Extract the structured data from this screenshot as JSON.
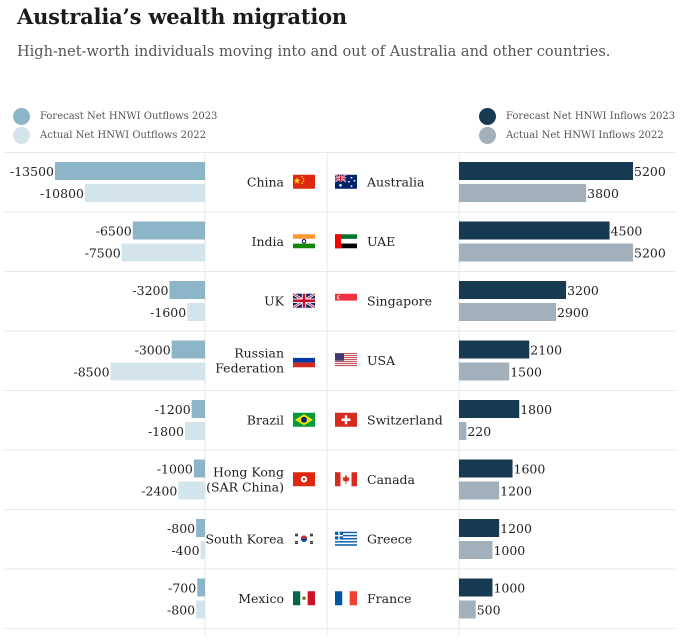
{
  "title": "Australia’s wealth migration",
  "subtitle": "High-net-worth individuals moving into and out of Australia and other countries.",
  "legend": {
    "outflow_forecast": "Forecast Net HNWI Outflows 2023",
    "outflow_actual": "Actual Net HNWI Outflows 2022",
    "inflow_forecast": "Forecast Net HNWI Inflows 2023",
    "inflow_actual": "Actual Net HNWI Inflows 2022"
  },
  "colors": {
    "outflow_forecast": "#8db5c8",
    "outflow_actual": "#d4e4ec",
    "inflow_forecast": "#163a52",
    "inflow_actual": "#a1b0ba"
  },
  "chart_data": [
    {
      "type": "bar",
      "side": "outflows",
      "categories": [
        "China",
        "India",
        "UK",
        "Russian Federation",
        "Brazil",
        "Hong Kong (SAR China)",
        "South Korea",
        "Mexico"
      ],
      "series": [
        {
          "name": "Forecast Net HNWI Outflows 2023",
          "values": [
            -13500,
            -6500,
            -3200,
            -3000,
            -1200,
            -1000,
            -800,
            -700
          ]
        },
        {
          "name": "Actual Net HNWI Outflows 2022",
          "values": [
            -10800,
            -7500,
            -1600,
            -8500,
            -1800,
            -2400,
            -400,
            -800
          ]
        }
      ]
    },
    {
      "type": "bar",
      "side": "inflows",
      "categories": [
        "Australia",
        "UAE",
        "Singapore",
        "USA",
        "Switzerland",
        "Canada",
        "Greece",
        "France"
      ],
      "series": [
        {
          "name": "Forecast Net HNWI Inflows 2023",
          "values": [
            5200,
            4500,
            3200,
            2100,
            1800,
            1600,
            1200,
            1000
          ]
        },
        {
          "name": "Actual Net HNWI Inflows 2022",
          "values": [
            3800,
            5200,
            2900,
            1500,
            220,
            1200,
            1000,
            500
          ]
        }
      ]
    }
  ],
  "rows": [
    {
      "out_label": [
        "China"
      ],
      "out_flag": "china-flag-icon",
      "in_label": [
        "Australia"
      ],
      "in_flag": "australia-flag-icon"
    },
    {
      "out_label": [
        "India"
      ],
      "out_flag": "india-flag-icon",
      "in_label": [
        "UAE"
      ],
      "in_flag": "uae-flag-icon"
    },
    {
      "out_label": [
        "UK"
      ],
      "out_flag": "uk-flag-icon",
      "in_label": [
        "Singapore"
      ],
      "in_flag": "singapore-flag-icon"
    },
    {
      "out_label": [
        "Russian",
        "Federation"
      ],
      "out_flag": "russia-flag-icon",
      "in_label": [
        "USA"
      ],
      "in_flag": "usa-flag-icon"
    },
    {
      "out_label": [
        "Brazil"
      ],
      "out_flag": "brazil-flag-icon",
      "in_label": [
        "Switzerland"
      ],
      "in_flag": "switzerland-flag-icon"
    },
    {
      "out_label": [
        "Hong Kong",
        "(SAR China)"
      ],
      "out_flag": "hong-kong-flag-icon",
      "in_label": [
        "Canada"
      ],
      "in_flag": "canada-flag-icon"
    },
    {
      "out_label": [
        "South Korea"
      ],
      "out_flag": "south-korea-flag-icon",
      "in_label": [
        "Greece"
      ],
      "in_flag": "greece-flag-icon"
    },
    {
      "out_label": [
        "Mexico"
      ],
      "out_flag": "mexico-flag-icon",
      "in_label": [
        "France"
      ],
      "in_flag": "france-flag-icon"
    }
  ]
}
